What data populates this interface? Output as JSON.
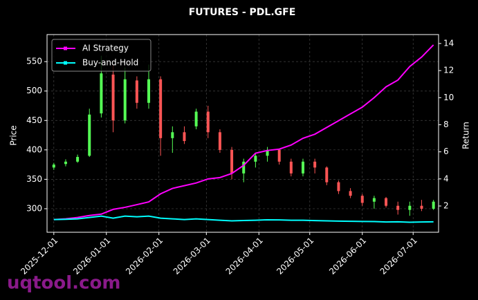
{
  "chart_data": {
    "type": "candlestick",
    "title": "FUTURES - PDL.GFE",
    "ylabel": "Price",
    "y2label": "Return",
    "watermark": "uqtool.com",
    "x": [
      "2025-12-01",
      "2025-12-08",
      "2025-12-15",
      "2025-12-22",
      "2025-12-29",
      "2026-01-05",
      "2026-01-12",
      "2026-01-19",
      "2026-01-26",
      "2026-02-02",
      "2026-02-09",
      "2026-02-16",
      "2026-02-23",
      "2026-03-02",
      "2026-03-09",
      "2026-03-16",
      "2026-03-23",
      "2026-03-30",
      "2026-04-06",
      "2026-04-13",
      "2026-04-20",
      "2026-04-27",
      "2026-05-04",
      "2026-05-11",
      "2026-05-18",
      "2026-05-25",
      "2026-06-01",
      "2026-06-08",
      "2026-06-15",
      "2026-06-22",
      "2026-06-29",
      "2026-07-06",
      "2026-07-13"
    ],
    "open": [
      370,
      376,
      380,
      390,
      462,
      528,
      450,
      518,
      480,
      520,
      420,
      430,
      440,
      465,
      430,
      400,
      360,
      380,
      390,
      400,
      380,
      360,
      380,
      370,
      345,
      330,
      322,
      312,
      318,
      305,
      298,
      305,
      300
    ],
    "high": [
      378,
      384,
      392,
      470,
      560,
      545,
      540,
      525,
      545,
      525,
      440,
      440,
      470,
      475,
      435,
      405,
      385,
      395,
      405,
      402,
      385,
      385,
      385,
      372,
      348,
      335,
      325,
      322,
      320,
      312,
      312,
      315,
      315
    ],
    "low": [
      366,
      372,
      378,
      388,
      455,
      430,
      445,
      470,
      470,
      390,
      395,
      410,
      435,
      420,
      395,
      350,
      345,
      370,
      380,
      375,
      355,
      355,
      360,
      340,
      325,
      318,
      305,
      300,
      302,
      290,
      288,
      296,
      298
    ],
    "close": [
      375,
      380,
      388,
      460,
      530,
      450,
      520,
      480,
      520,
      420,
      430,
      415,
      465,
      430,
      400,
      360,
      380,
      390,
      400,
      380,
      360,
      380,
      370,
      345,
      330,
      322,
      310,
      318,
      305,
      298,
      305,
      300,
      312
    ],
    "up_color": "#55ff55",
    "down_color": "#ff5555",
    "series": [
      {
        "name": "AI Strategy",
        "color": "#ff00ff",
        "axis": "y2",
        "values": [
          1.0,
          1.05,
          1.15,
          1.3,
          1.4,
          1.75,
          1.9,
          2.1,
          2.3,
          2.9,
          3.3,
          3.5,
          3.7,
          4.0,
          4.1,
          4.4,
          5.0,
          5.9,
          6.1,
          6.2,
          6.5,
          7.0,
          7.3,
          7.8,
          8.3,
          8.8,
          9.3,
          10.0,
          10.8,
          11.3,
          12.3,
          13.0,
          13.9
        ]
      },
      {
        "name": "Buy-and-Hold",
        "color": "#00ffff",
        "axis": "y2",
        "values": [
          1.0,
          1.02,
          1.05,
          1.15,
          1.25,
          1.1,
          1.25,
          1.2,
          1.25,
          1.1,
          1.05,
          1.0,
          1.05,
          1.0,
          0.95,
          0.9,
          0.93,
          0.95,
          0.98,
          0.97,
          0.95,
          0.95,
          0.92,
          0.9,
          0.88,
          0.87,
          0.86,
          0.85,
          0.82,
          0.83,
          0.8,
          0.82,
          0.83
        ]
      }
    ],
    "xlim": [
      "2025-11-27",
      "2026-07-16"
    ],
    "xticks": [
      "2025-12-01",
      "2026-01-01",
      "2026-02-01",
      "2026-03-01",
      "2026-04-01",
      "2026-05-01",
      "2026-06-01",
      "2026-07-01"
    ],
    "ylim": [
      260,
      596
    ],
    "yticks": [
      300,
      350,
      400,
      450,
      500,
      550
    ],
    "y2lim": [
      0.06,
      14.66
    ],
    "y2ticks": [
      2,
      4,
      6,
      8,
      10,
      12,
      14
    ],
    "grid": true,
    "legend": "upper left"
  }
}
